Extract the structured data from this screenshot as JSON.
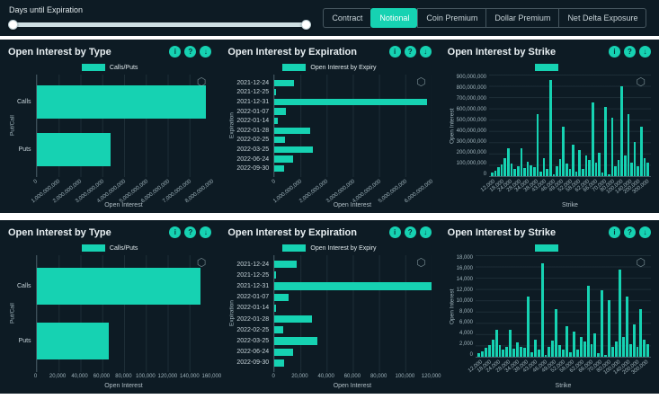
{
  "colors": {
    "accent": "#16d2b2",
    "panel": "#0d1b24"
  },
  "topbar": {
    "slider_label": "Days until Expiration",
    "views": [
      {
        "label": "Contract",
        "active": false
      },
      {
        "label": "Notional",
        "active": true
      },
      {
        "label": "Coin Premium",
        "active": false
      },
      {
        "label": "Dollar Premium",
        "active": false
      },
      {
        "label": "Net Delta Exposure",
        "active": false
      }
    ]
  },
  "icons": [
    {
      "name": "info-icon",
      "glyph": "i"
    },
    {
      "name": "help-icon",
      "glyph": "?"
    },
    {
      "name": "download-icon",
      "glyph": "↓"
    }
  ],
  "watermark_glyph": "⬡",
  "chart_data": [
    {
      "id": "type-notional",
      "type": "hbar",
      "title": "Open Interest by Type",
      "legend": "Calls/Puts",
      "xlabel": "Open Interest",
      "ylabel": "Put/Call",
      "categories": [
        "Calls",
        "Puts"
      ],
      "values": [
        7750000000,
        3400000000
      ],
      "xmax": 8000000000,
      "rotate_ticks": true,
      "xticks": [
        "0",
        "1,000,000,000",
        "2,000,000,000",
        "3,000,000,000",
        "4,000,000,000",
        "5,000,000,000",
        "6,000,000,000",
        "7,000,000,000",
        "8,000,000,000"
      ]
    },
    {
      "id": "expiration-notional",
      "type": "hbar",
      "title": "Open Interest by Expiration",
      "legend": "Open Interest by Expiry",
      "xlabel": "Open Interest",
      "ylabel": "Expiration",
      "categories": [
        "2021-12-24",
        "2021-12-25",
        "2021-12-31",
        "2022-01-07",
        "2022-01-14",
        "2022-01-28",
        "2022-02-25",
        "2022-03-25",
        "2022-06-24",
        "2022-09-30"
      ],
      "values": [
        750000000,
        60000000,
        5850000000,
        450000000,
        130000000,
        1370000000,
        400000000,
        1480000000,
        700000000,
        380000000
      ],
      "xmax": 6000000000,
      "rotate_ticks": true,
      "xticks": [
        "0",
        "1,000,000,000",
        "2,000,000,000",
        "3,000,000,000",
        "4,000,000,000",
        "5,000,000,000",
        "6,000,000,000"
      ]
    },
    {
      "id": "strike-notional",
      "type": "vbar",
      "title": "Open Interest by Strike",
      "legend": "",
      "xlabel": "Strike",
      "ylabel": "Open Interest",
      "ymax": 900000000,
      "yticks": [
        "900,000,000",
        "800,000,000",
        "700,000,000",
        "600,000,000",
        "500,000,000",
        "400,000,000",
        "300,000,000",
        "200,000,000",
        "100,000,000",
        "0"
      ],
      "xticks": [
        "12,000",
        "18,000",
        "24,000",
        "28,000",
        "34,000",
        "38,000",
        "43,000",
        "46,000",
        "49,000",
        "52,000",
        "58,000",
        "62,000",
        "66,000",
        "70,000",
        "80,000",
        "100,000",
        "140,000",
        "200,000",
        "300,000"
      ],
      "values": [
        30000000,
        50000000,
        80000000,
        100000000,
        160000000,
        250000000,
        110000000,
        60000000,
        90000000,
        250000000,
        70000000,
        130000000,
        95000000,
        80000000,
        550000000,
        40000000,
        160000000,
        60000000,
        850000000,
        20000000,
        90000000,
        150000000,
        440000000,
        110000000,
        60000000,
        280000000,
        40000000,
        230000000,
        60000000,
        180000000,
        140000000,
        650000000,
        120000000,
        210000000,
        30000000,
        610000000,
        20000000,
        520000000,
        90000000,
        140000000,
        800000000,
        180000000,
        550000000,
        120000000,
        300000000,
        90000000,
        440000000,
        160000000,
        120000000
      ]
    },
    {
      "id": "type-contract",
      "type": "hbar",
      "title": "Open Interest by Type",
      "legend": "Calls/Puts",
      "xlabel": "Open Interest",
      "ylabel": "Put/Call",
      "categories": [
        "Calls",
        "Puts"
      ],
      "values": [
        150000,
        66000
      ],
      "xmax": 160000,
      "rotate_ticks": false,
      "xticks": [
        "0",
        "20,000",
        "40,000",
        "60,000",
        "80,000",
        "100,000",
        "120,000",
        "140,000",
        "160,000"
      ]
    },
    {
      "id": "expiration-contract",
      "type": "hbar",
      "title": "Open Interest by Expiration",
      "legend": "Open Interest by Expiry",
      "xlabel": "Open Interest",
      "ylabel": "Expiration",
      "categories": [
        "2021-12-24",
        "2021-12-25",
        "2021-12-31",
        "2022-01-07",
        "2022-01-14",
        "2022-01-28",
        "2022-02-25",
        "2022-03-25",
        "2022-06-24",
        "2022-09-30"
      ],
      "values": [
        17000,
        1500,
        120000,
        11000,
        1600,
        29000,
        7000,
        33000,
        14500,
        7300
      ],
      "xmax": 120000,
      "rotate_ticks": false,
      "xticks": [
        "0",
        "20,000",
        "40,000",
        "60,000",
        "80,000",
        "100,000",
        "120,000"
      ]
    },
    {
      "id": "strike-contract",
      "type": "vbar",
      "title": "Open Interest by Strike",
      "legend": "",
      "xlabel": "Strike",
      "ylabel": "Open Interest",
      "ymax": 18000,
      "yticks": [
        "18,000",
        "16,000",
        "14,000",
        "12,000",
        "10,000",
        "8,000",
        "6,000",
        "4,000",
        "2,000",
        "0"
      ],
      "xticks": [
        "12,000",
        "18,000",
        "24,000",
        "28,000",
        "34,000",
        "38,000",
        "43,000",
        "46,000",
        "49,000",
        "52,000",
        "58,000",
        "62,000",
        "66,000",
        "70,000",
        "80,000",
        "100,000",
        "140,000",
        "200,000",
        "300,000"
      ],
      "values": [
        600,
        1000,
        1600,
        2000,
        3100,
        4800,
        2100,
        1200,
        1700,
        4800,
        1400,
        2500,
        1800,
        1600,
        10700,
        800,
        3100,
        1200,
        16500,
        400,
        1700,
        2900,
        8500,
        2100,
        1200,
        5400,
        800,
        4500,
        1200,
        3500,
        2700,
        12600,
        2300,
        4100,
        600,
        11800,
        400,
        10100,
        1700,
        2700,
        15500,
        3500,
        10700,
        2300,
        5800,
        1700,
        8500,
        3100,
        2300
      ]
    }
  ]
}
